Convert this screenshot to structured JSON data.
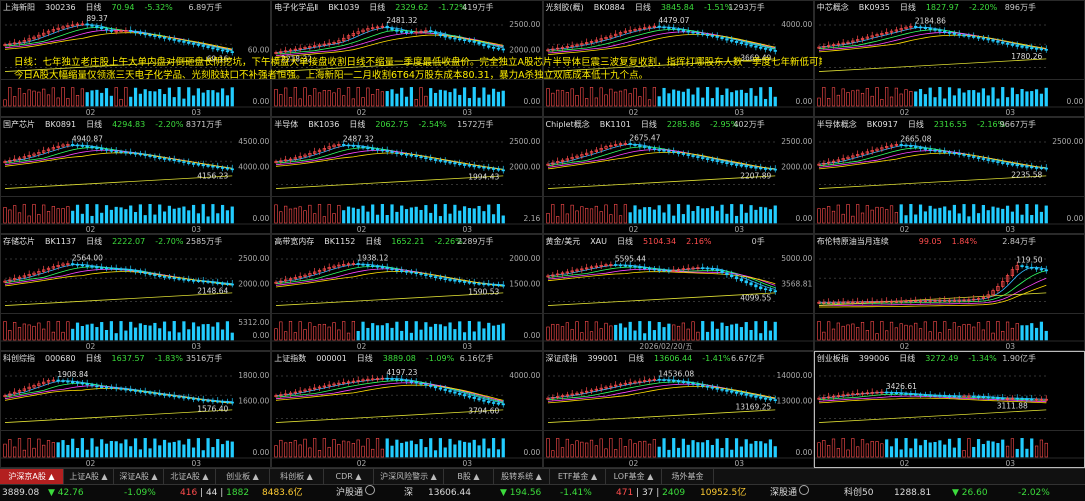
{
  "panels": [
    {
      "name": "上海新阳",
      "code": "300236",
      "type": "日线",
      "price": "70.94",
      "change": "-5.32%",
      "volume": "6.89万手",
      "dir": "down",
      "yticks": [
        "",
        "60.00"
      ],
      "volticks": [
        "",
        "0.00"
      ],
      "high_label": "89.37",
      "low_label": "69.16",
      "xlabels": [
        "02",
        "03"
      ],
      "trend": [
        0.55,
        0.6,
        0.7,
        0.82,
        0.9,
        0.95,
        0.88,
        0.8,
        0.82,
        0.75,
        0.7,
        0.64,
        0.58,
        0.52,
        0.45,
        0.4
      ]
    },
    {
      "name": "电子化学品Ⅱ",
      "code": "BK1039",
      "type": "日线",
      "price": "2329.62",
      "change": "-1.72%",
      "volume": "419万手",
      "dir": "down",
      "yticks": [
        "2500.00",
        "2000.00"
      ],
      "volticks": [
        "",
        "0.00"
      ],
      "high_label": "2481.32",
      "low_label": "2218.32",
      "xlabels": [
        "02",
        "03"
      ],
      "trend": [
        0.4,
        0.45,
        0.5,
        0.55,
        0.6,
        0.75,
        0.85,
        0.9,
        0.8,
        0.78,
        0.82,
        0.7,
        0.65,
        0.6,
        0.5,
        0.45
      ]
    },
    {
      "name": "光刻胶(概)",
      "code": "BK0884",
      "type": "日线",
      "price": "3845.84",
      "change": "-1.51%",
      "volume": "1293万手",
      "dir": "down",
      "yticks": [
        "4000.00",
        ""
      ],
      "volticks": [
        "",
        "0.00"
      ],
      "high_label": "4479.07",
      "low_label": "3669.49",
      "xlabels": [
        "02",
        "03"
      ],
      "trend": [
        0.45,
        0.5,
        0.55,
        0.62,
        0.7,
        0.8,
        0.85,
        0.9,
        0.86,
        0.8,
        0.75,
        0.7,
        0.62,
        0.55,
        0.48,
        0.42
      ]
    },
    {
      "name": "中芯概念",
      "code": "BK0935",
      "type": "日线",
      "price": "1827.97",
      "change": "-2.20%",
      "volume": "896万手",
      "dir": "down",
      "yticks": [
        "",
        ""
      ],
      "volticks": [
        "",
        "0.00"
      ],
      "high_label": "2184.86",
      "low_label": "1780.26",
      "xlabels": [
        "02",
        "03"
      ],
      "trend": [
        0.5,
        0.55,
        0.6,
        0.68,
        0.75,
        0.82,
        0.9,
        0.86,
        0.8,
        0.74,
        0.7,
        0.65,
        0.58,
        0.52,
        0.48,
        0.45
      ]
    },
    {
      "name": "国产芯片",
      "code": "BK0891",
      "type": "日线",
      "price": "4294.83",
      "change": "-2.20%",
      "volume": "8371万手",
      "dir": "down",
      "yticks": [
        "4500.00",
        "4000.00"
      ],
      "volticks": [
        "",
        "0.00"
      ],
      "high_label": "4940.87",
      "low_label": "4156.23",
      "xlabels": [
        "02",
        "03"
      ],
      "trend": [
        0.55,
        0.62,
        0.7,
        0.8,
        0.88,
        0.85,
        0.8,
        0.75,
        0.72,
        0.68,
        0.62,
        0.58,
        0.52,
        0.48,
        0.44,
        0.4
      ]
    },
    {
      "name": "半导体",
      "code": "BK1036",
      "type": "日线",
      "price": "2062.75",
      "change": "-2.54%",
      "volume": "1572万手",
      "dir": "down",
      "yticks": [
        "2500.00",
        "2000.00"
      ],
      "volticks": [
        "",
        "2.16"
      ],
      "high_label": "2487.32",
      "low_label": "1994.43",
      "xlabels": [
        "02",
        "03"
      ],
      "trend": [
        0.55,
        0.6,
        0.68,
        0.78,
        0.88,
        0.85,
        0.8,
        0.76,
        0.7,
        0.66,
        0.6,
        0.55,
        0.5,
        0.46,
        0.42,
        0.38
      ]
    },
    {
      "name": "Chiplet概念",
      "code": "BK1101",
      "type": "日线",
      "price": "2285.86",
      "change": "-2.95%",
      "volume": "402万手",
      "dir": "down",
      "yticks": [
        "2500.00",
        "2000.00"
      ],
      "volticks": [
        "",
        "0.00"
      ],
      "high_label": "2675.47",
      "low_label": "2207.89",
      "xlabels": [
        "02",
        "03"
      ],
      "trend": [
        0.5,
        0.58,
        0.66,
        0.75,
        0.85,
        0.9,
        0.84,
        0.78,
        0.74,
        0.68,
        0.62,
        0.56,
        0.5,
        0.46,
        0.42,
        0.4
      ]
    },
    {
      "name": "半导体概念",
      "code": "BK0917",
      "type": "日线",
      "price": "2316.55",
      "change": "-2.16%",
      "volume": "9667万手",
      "dir": "down",
      "yticks": [
        "2500.00",
        ""
      ],
      "volticks": [
        "",
        "0.00"
      ],
      "high_label": "2665.08",
      "low_label": "2235.58",
      "xlabels": [
        "02",
        "03"
      ],
      "trend": [
        0.5,
        0.56,
        0.64,
        0.72,
        0.8,
        0.88,
        0.84,
        0.78,
        0.74,
        0.7,
        0.64,
        0.58,
        0.52,
        0.48,
        0.44,
        0.42
      ]
    },
    {
      "name": "存储芯片",
      "code": "BK1137",
      "type": "日线",
      "price": "2222.07",
      "change": "-2.70%",
      "volume": "2585万手",
      "dir": "down",
      "yticks": [
        "2500.00",
        "2000.00"
      ],
      "volticks": [
        "5312.00",
        "0.00"
      ],
      "high_label": "2564.00",
      "low_label": "2148.64",
      "xlabels": [
        "02",
        "03"
      ],
      "trend": [
        0.5,
        0.58,
        0.66,
        0.76,
        0.84,
        0.8,
        0.76,
        0.74,
        0.72,
        0.66,
        0.6,
        0.56,
        0.52,
        0.5,
        0.46,
        0.44
      ]
    },
    {
      "name": "高带宽内存",
      "code": "BK1152",
      "type": "日线",
      "price": "1652.21",
      "change": "-2.26%",
      "volume": "2289万手",
      "dir": "down",
      "yticks": [
        "2000.00",
        "1500.00"
      ],
      "volticks": [
        "",
        "0.00"
      ],
      "high_label": "1938.12",
      "low_label": "1590.53",
      "xlabels": [
        "02",
        "03"
      ],
      "trend": [
        0.48,
        0.55,
        0.62,
        0.72,
        0.8,
        0.84,
        0.8,
        0.76,
        0.7,
        0.66,
        0.6,
        0.54,
        0.5,
        0.46,
        0.44,
        0.42
      ]
    },
    {
      "name": "黄金/美元",
      "code": "XAU",
      "type": "日线",
      "price": "5104.34",
      "change": "2.16%",
      "volume": "0手",
      "dir": "up",
      "yticks": [
        "5000.00",
        "3568.81"
      ],
      "volticks": [
        "",
        ""
      ],
      "high_label": "5595.44",
      "low_label": "4099.55",
      "xlabels": [
        "2026/02/20/五"
      ],
      "trend": [
        0.6,
        0.66,
        0.72,
        0.78,
        0.82,
        0.8,
        0.76,
        0.72,
        0.7,
        0.74,
        0.76,
        0.72,
        0.6,
        0.48,
        0.36,
        0.3
      ]
    },
    {
      "name": "布伦特原油当月连续",
      "code": "",
      "type": "",
      "price": "99.05",
      "change": "1.84%",
      "volume": "2.84万手",
      "dir": "up",
      "yticks": [
        "",
        ""
      ],
      "volticks": [
        "",
        ""
      ],
      "high_label": "119.50",
      "low_label": "",
      "xlabels": [
        "02",
        "03"
      ],
      "trend": [
        0.1,
        0.1,
        0.11,
        0.11,
        0.12,
        0.12,
        0.13,
        0.13,
        0.14,
        0.14,
        0.15,
        0.2,
        0.45,
        0.8,
        0.75,
        0.7
      ]
    },
    {
      "name": "科创综指",
      "code": "000680",
      "type": "日线",
      "price": "1637.57",
      "change": "-1.83%",
      "volume": "3516万手",
      "dir": "down",
      "yticks": [
        "1800.00",
        "1600.00"
      ],
      "volticks": [
        "",
        "0.00"
      ],
      "high_label": "1908.84",
      "low_label": "1576.40",
      "xlabels": [
        "02",
        "03"
      ],
      "trend": [
        0.55,
        0.65,
        0.75,
        0.85,
        0.82,
        0.78,
        0.72,
        0.7,
        0.66,
        0.62,
        0.58,
        0.54,
        0.5,
        0.46,
        0.44,
        0.42
      ]
    },
    {
      "name": "上证指数",
      "code": "000001",
      "type": "日线",
      "price": "3889.08",
      "change": "-1.09%",
      "volume": "6.16亿手",
      "dir": "down",
      "yticks": [
        "4000.00",
        ""
      ],
      "volticks": [
        "",
        "0.00"
      ],
      "high_label": "4197.23",
      "low_label": "3794.60",
      "xlabels": [
        "02",
        "03"
      ],
      "trend": [
        0.55,
        0.6,
        0.66,
        0.72,
        0.78,
        0.82,
        0.86,
        0.88,
        0.86,
        0.8,
        0.74,
        0.66,
        0.58,
        0.5,
        0.42,
        0.38
      ]
    },
    {
      "name": "深证成指",
      "code": "399001",
      "type": "日线",
      "price": "13606.44",
      "change": "-1.41%",
      "volume": "6.67亿手",
      "dir": "down",
      "yticks": [
        "14000.00",
        "13000.00"
      ],
      "volticks": [
        "",
        "0.00"
      ],
      "high_label": "14536.08",
      "low_label": "13169.25",
      "xlabels": [
        "02",
        "03"
      ],
      "trend": [
        0.5,
        0.55,
        0.6,
        0.66,
        0.72,
        0.78,
        0.82,
        0.86,
        0.84,
        0.8,
        0.74,
        0.68,
        0.62,
        0.56,
        0.5,
        0.46
      ]
    },
    {
      "name": "创业板指",
      "code": "399006",
      "type": "日线",
      "price": "3272.49",
      "change": "-1.34%",
      "volume": "1.90亿手",
      "dir": "down",
      "yticks": [
        "",
        ""
      ],
      "volticks": [
        "",
        ""
      ],
      "high_label": "3426.61",
      "low_label": "3111.88",
      "xlabels": [
        "02",
        "03"
      ],
      "trend": [
        0.5,
        0.54,
        0.58,
        0.6,
        0.62,
        0.6,
        0.58,
        0.56,
        0.55,
        0.54,
        0.54,
        0.52,
        0.5,
        0.5,
        0.48,
        0.48
      ]
    }
  ],
  "annotation_lines": [
    "日线：七年独立老庄股上午大单内盘对倒砸盘长阴挖坑，下午横盘大单接盘收割日线不缩量一季度最低收盘价。完全独立A股芯片半导体巨震三波复复收割，指挥打哪股东人数一季度七年新低可期!",
    "今日A股大幅缩量仅领涨三天电子化学品、光刻胶缺口不补强者恒强。上海新阳一二月收割6T64万股东成本80.31，暴力A杀独立双底成本低十九个点。"
  ],
  "tabs": [
    "沪深京A股",
    "上证A股",
    "深证A股",
    "北证A股",
    "创业板",
    "科创板",
    "CDR",
    "沪深风险警示",
    "B股",
    "股转系统",
    "ETF基金",
    "LOF基金",
    "场外基金"
  ],
  "status": {
    "sh_index": "3889.08",
    "sh_change_pts": "▼ 42.76",
    "sh_change_pct": "-1.09%",
    "sh_updown_up": "416",
    "sh_updown_flat": "44",
    "sh_updown_down": "1882",
    "sh_amount": "8483.6亿",
    "sh_connect": "沪股通",
    "sz_label": "深",
    "sz_index": "13606.44",
    "sz_change_pts": "▼ 194.56",
    "sz_change_pct": "-1.41%",
    "sz_updown_up": "471",
    "sz_updown_flat": "37",
    "sz_updown_down": "2409",
    "sz_amount": "10952.5亿",
    "sz_connect": "深股通",
    "kc_label": "科创50",
    "kc_index": "1288.81",
    "kc_change_pts": "▼ 26.60",
    "kc_change_pct": "-2.02%"
  },
  "colors": {
    "up": "#ff4d4d",
    "down": "#3cdc3c",
    "ma1": "#ffffff",
    "ma2": "#ffdd00",
    "ma3": "#ff44ff",
    "ma4": "#33ff66",
    "ma5": "#33bbff",
    "vol": "#22ccff"
  }
}
